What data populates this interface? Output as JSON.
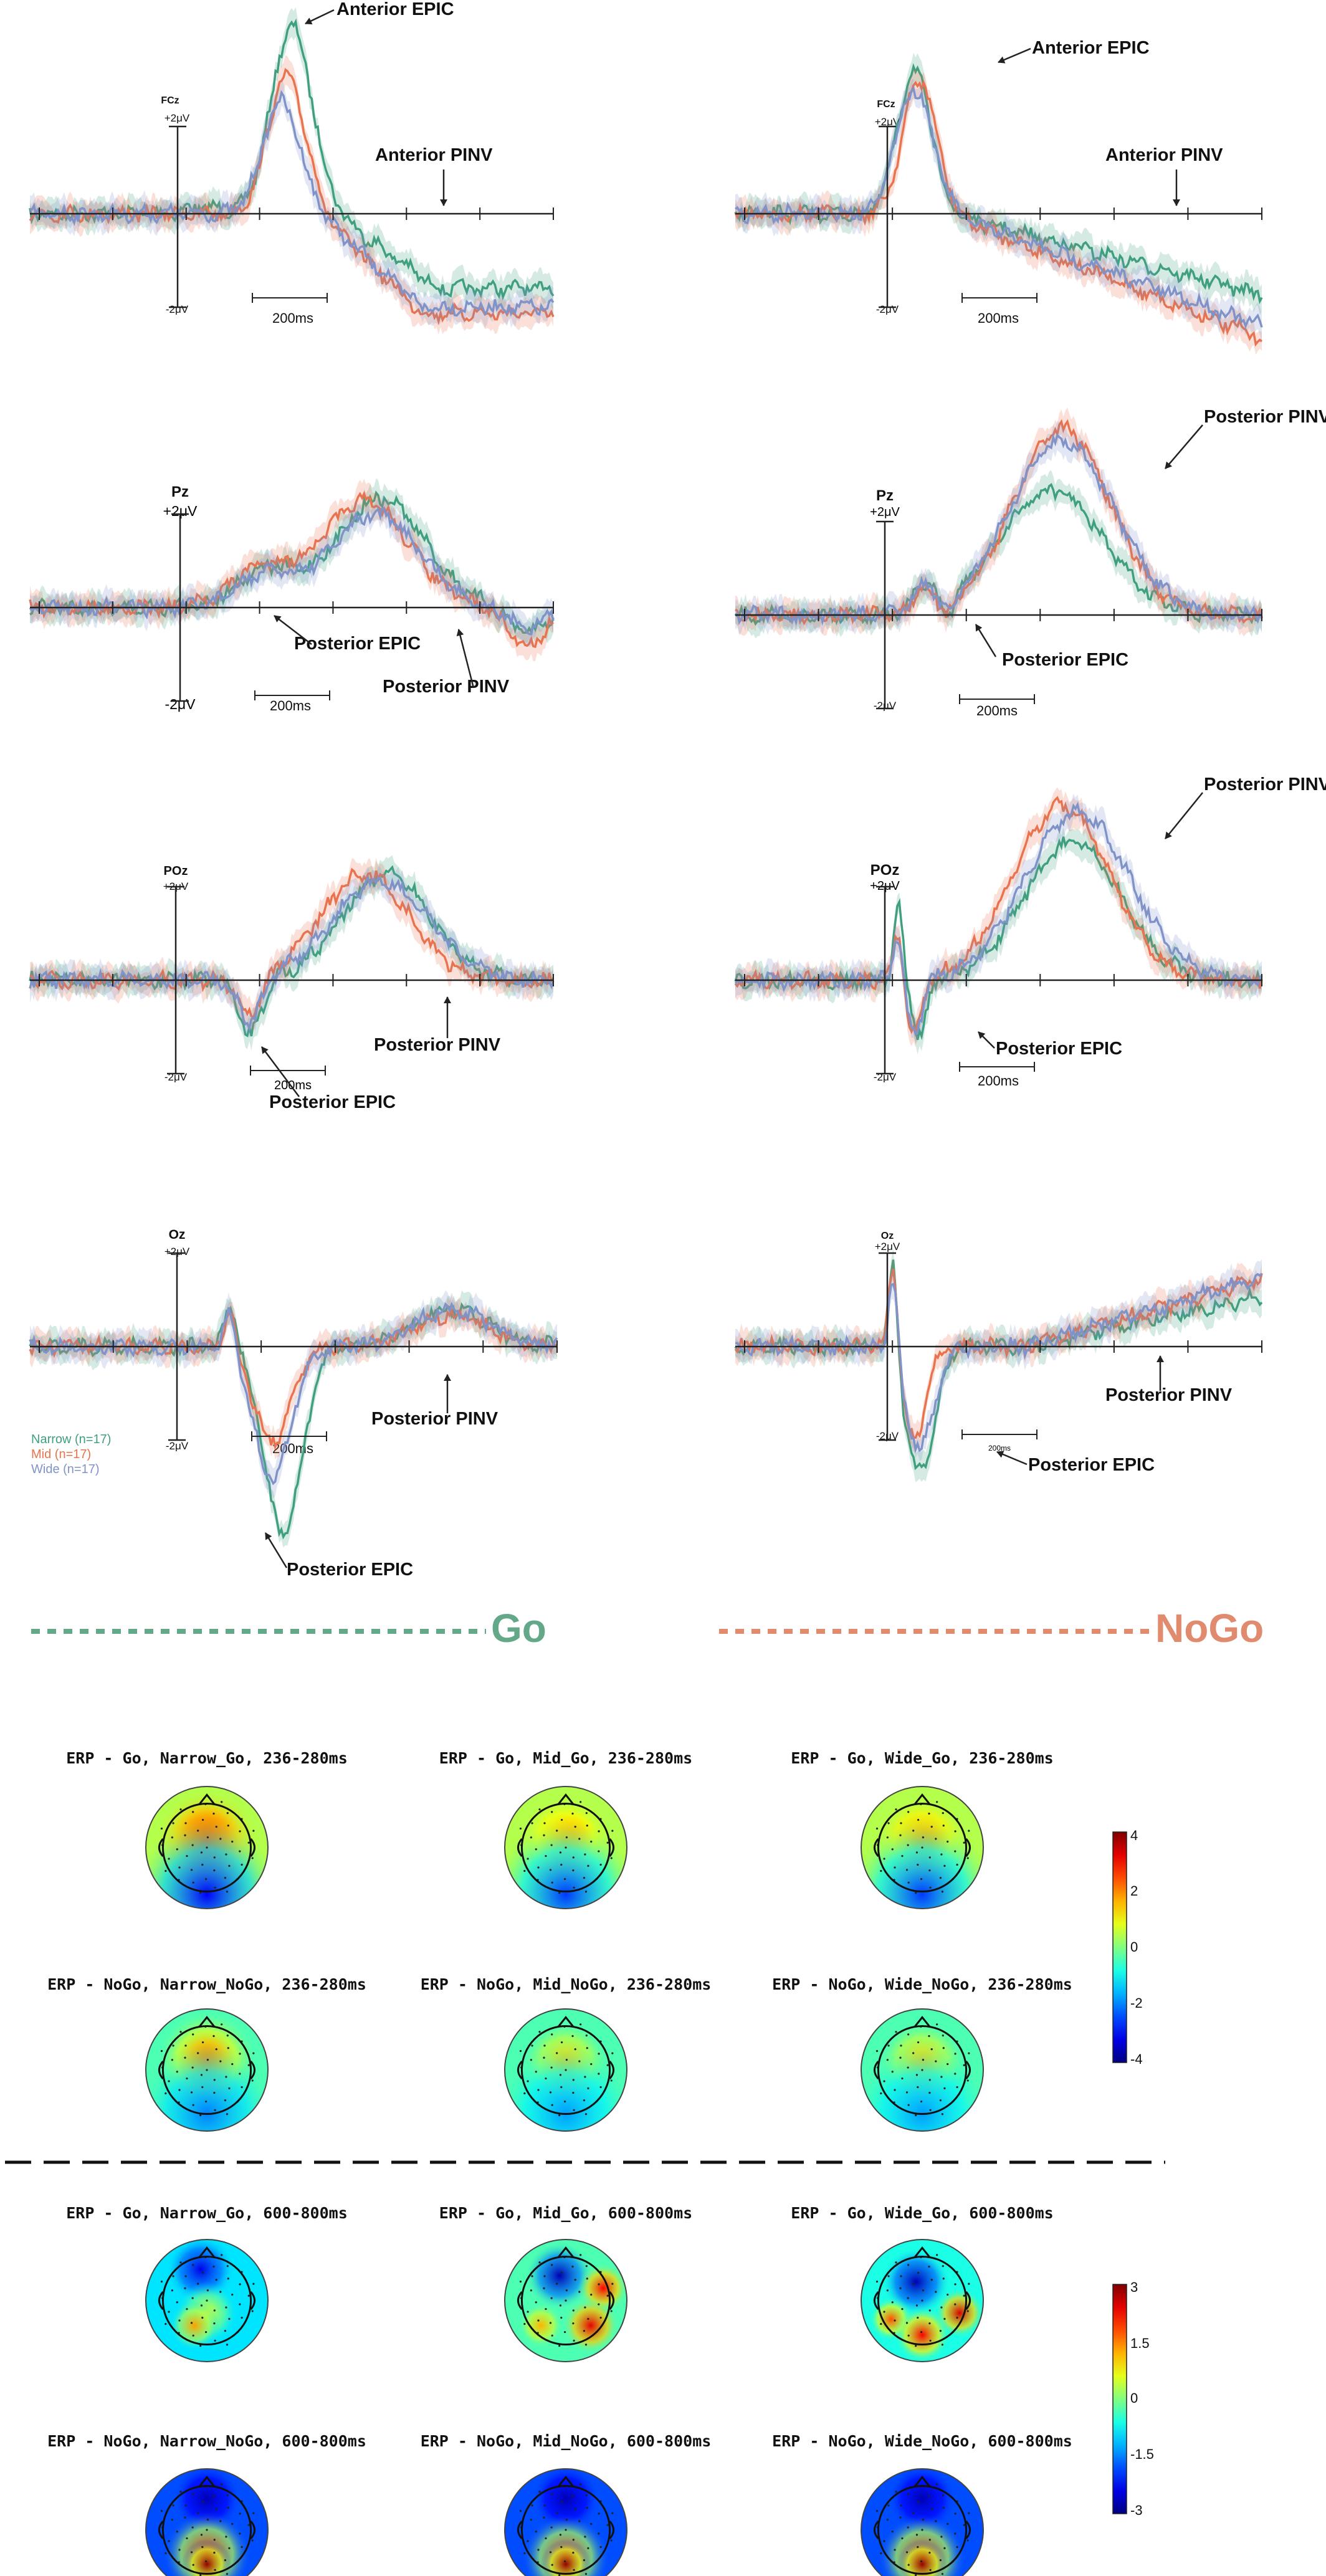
{
  "colors": {
    "narrow": "#3f9f7f",
    "mid": "#e8734e",
    "wide": "#7f93c8",
    "go_accent": "#63a889",
    "nogo_accent": "#e08a6e"
  },
  "legend": [
    {
      "label": "Narrow (n=17)",
      "color": "#3f9f7f"
    },
    {
      "label": "Mid (n=17)",
      "color": "#e8734e"
    },
    {
      "label": "Wide (n=17)",
      "color": "#7f93c8"
    }
  ],
  "condition_labels": {
    "go": "Go",
    "nogo": "NoGo"
  },
  "amp_plus": "+2μV",
  "amp_minus": "-2μV",
  "scale_bar": "200ms",
  "erp_panels": [
    {
      "id": "fcz-go",
      "electrode": "FCz",
      "side": "go",
      "annotations": [
        "Anterior EPIC",
        "Anterior PINV"
      ]
    },
    {
      "id": "fcz-nogo",
      "electrode": "FCz",
      "side": "nogo",
      "annotations": [
        "Anterior EPIC",
        "Anterior PINV"
      ]
    },
    {
      "id": "pz-go",
      "electrode": "Pz",
      "side": "go",
      "annotations": [
        "Posterior EPIC",
        "Posterior PINV"
      ]
    },
    {
      "id": "pz-nogo",
      "electrode": "Pz",
      "side": "nogo",
      "annotations": [
        "Posterior PINV",
        "Posterior EPIC"
      ]
    },
    {
      "id": "poz-go",
      "electrode": "POz",
      "side": "go",
      "annotations": [
        "Posterior PINV",
        "Posterior EPIC"
      ]
    },
    {
      "id": "poz-nogo",
      "electrode": "POz",
      "side": "nogo",
      "annotations": [
        "Posterior PINV",
        "Posterior EPIC"
      ]
    },
    {
      "id": "oz-go",
      "electrode": "Oz",
      "side": "go",
      "annotations": [
        "Posterior PINV",
        "Posterior EPIC"
      ]
    },
    {
      "id": "oz-nogo",
      "electrode": "Oz",
      "side": "nogo",
      "annotations": [
        "Posterior PINV",
        "Posterior EPIC"
      ]
    }
  ],
  "topomaps": [
    {
      "title": "ERP - Go, Narrow_Go, 236-280ms"
    },
    {
      "title": "ERP - Go, Mid_Go, 236-280ms"
    },
    {
      "title": "ERP - Go, Wide_Go, 236-280ms"
    },
    {
      "title": "ERP - NoGo, Narrow_NoGo, 236-280ms"
    },
    {
      "title": "ERP - NoGo, Mid_NoGo, 236-280ms"
    },
    {
      "title": "ERP - NoGo, Wide_NoGo, 236-280ms"
    },
    {
      "title": "ERP - Go, Narrow_Go, 600-800ms"
    },
    {
      "title": "ERP - Go, Mid_Go, 600-800ms"
    },
    {
      "title": "ERP - Go, Wide_Go, 600-800ms"
    },
    {
      "title": "ERP - NoGo, Narrow_NoGo, 600-800ms"
    },
    {
      "title": "ERP - NoGo, Mid_NoGo, 600-800ms"
    },
    {
      "title": "ERP - NoGo, Wide_NoGo, 600-800ms"
    }
  ],
  "colorbars": [
    {
      "ticks": [
        "4",
        "2",
        "0",
        "-2",
        "-4"
      ]
    },
    {
      "ticks": [
        "3",
        "1.5",
        "0",
        "-1.5",
        "-3"
      ]
    }
  ],
  "chart_data": [
    {
      "type": "line",
      "electrodes": [
        "FCz",
        "Pz",
        "POz",
        "Oz"
      ],
      "conditions": [
        "Go",
        "NoGo"
      ],
      "series": [
        {
          "name": "Narrow (n=17)"
        },
        {
          "name": "Mid (n=17)"
        },
        {
          "name": "Wide (n=17)"
        }
      ],
      "amplitude_scale": [
        "+2μV",
        "-2μV"
      ],
      "time_scale": "200ms"
    },
    {
      "type": "heatmap",
      "windows": [
        "236-280ms",
        "600-800ms"
      ],
      "colorbar_236_280": [
        4,
        2,
        0,
        -2,
        -4
      ],
      "colorbar_600_800": [
        3,
        1.5,
        0,
        -1.5,
        -3
      ]
    }
  ]
}
